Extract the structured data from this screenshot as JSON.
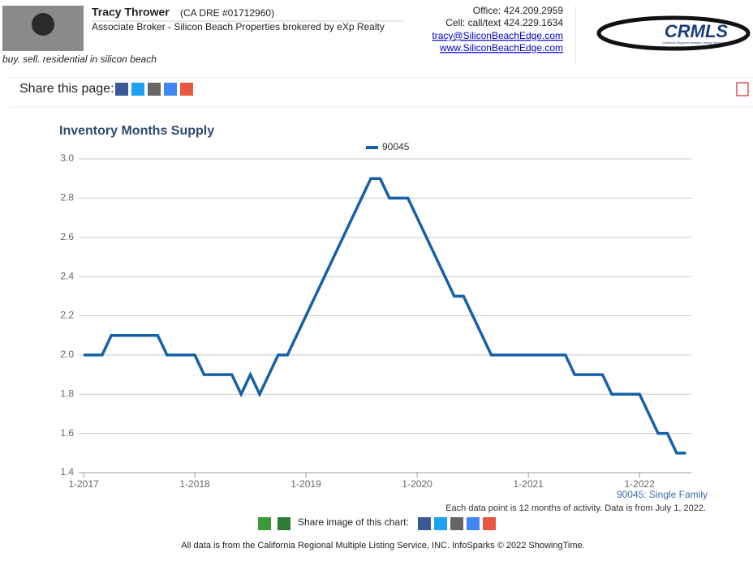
{
  "header": {
    "name": "Tracy Thrower",
    "license": "(CA DRE #01712960)",
    "role": "Associate Broker - Silicon Beach Properties brokered by eXp Realty",
    "tagline": "buy. sell. residential in silicon beach",
    "office": "Office: 424.209.2959",
    "cell": "Cell: call/text 424.229.1634",
    "email": "tracy@SiliconBeachEdge.com",
    "website": "www.SiliconBeachEdge.com",
    "logo": "CRMLS",
    "logo_subtitle": "California Regional Multiple Listing Service, Inc."
  },
  "share_page": "Share this page:",
  "chart_data": {
    "type": "line",
    "title": "Inventory Months Supply",
    "categories": [
      "1-2017",
      null,
      null,
      null,
      null,
      null,
      null,
      null,
      null,
      null,
      null,
      null,
      "1-2018",
      null,
      null,
      null,
      null,
      null,
      null,
      null,
      null,
      null,
      null,
      null,
      "1-2019",
      null,
      null,
      null,
      null,
      null,
      null,
      null,
      null,
      null,
      null,
      null,
      "1-2020",
      null,
      null,
      null,
      null,
      null,
      null,
      null,
      null,
      null,
      null,
      null,
      "1-2021",
      null,
      null,
      null,
      null,
      null,
      null,
      null,
      null,
      null,
      null,
      null,
      "1-2022",
      null,
      null,
      null,
      null,
      null
    ],
    "series": [
      {
        "name": "90045",
        "color": "#1560a8",
        "values": [
          2.0,
          2.0,
          2.0,
          2.1,
          2.1,
          2.1,
          2.1,
          2.1,
          2.1,
          2.0,
          2.0,
          2.0,
          2.0,
          1.9,
          1.9,
          1.9,
          1.9,
          1.8,
          1.9,
          1.8,
          1.9,
          2.0,
          2.0,
          2.1,
          2.2,
          2.3,
          2.4,
          2.5,
          2.6,
          2.7,
          2.8,
          2.9,
          2.9,
          2.8,
          2.8,
          2.8,
          2.7,
          2.6,
          2.5,
          2.4,
          2.3,
          2.3,
          2.2,
          2.1,
          2.0,
          2.0,
          2.0,
          2.0,
          2.0,
          2.0,
          2.0,
          2.0,
          2.0,
          1.9,
          1.9,
          1.9,
          1.9,
          1.8,
          1.8,
          1.8,
          1.8,
          1.7,
          1.6,
          1.6,
          1.5,
          1.5
        ]
      }
    ],
    "ylim": [
      1.4,
      3.0
    ],
    "yticks": [
      1.4,
      1.6,
      1.8,
      {
        "value": 2.0,
        "label": "2.0"
      },
      2.2,
      2.4,
      2.6,
      2.8,
      {
        "value": 3.0,
        "label": "3.0"
      }
    ],
    "grid": true,
    "legend": "top",
    "subtitle": "90045: Single Family",
    "note": "Each data point is 12 months of activity. Data is from July 1, 2022."
  },
  "share_chart": "Share image of this chart:",
  "footer": "All data is from the California Regional Multiple Listing Service, INC. InfoSparks © 2022 ShowingTime."
}
